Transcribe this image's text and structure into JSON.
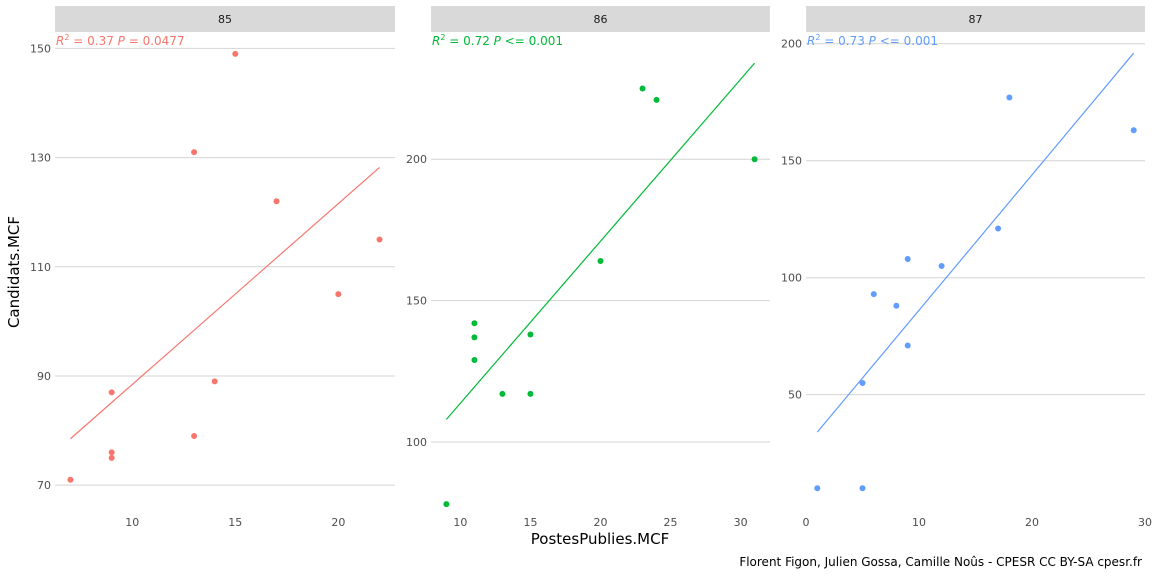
{
  "caption": "Florent Figon, Julien Gossa, Camille Noûs - CPESR CC BY-SA cpesr.fr",
  "chart_data": {
    "type": "scatter",
    "xlabel": "PostesPublies.MCF",
    "ylabel": "Candidats.MCF",
    "grid": "horizontal major gridlines",
    "panels": [
      {
        "strip": "85",
        "color": "#F8766D",
        "stat_r2": "= 0.37",
        "stat_p": "= 0.0477",
        "xlim": [
          6.25,
          22.75
        ],
        "ylim": [
          66,
          153
        ],
        "xticks": [
          10,
          15,
          20
        ],
        "yticks": [
          70,
          90,
          110,
          130,
          150
        ],
        "points": [
          [
            7,
            71
          ],
          [
            9,
            75
          ],
          [
            9,
            76
          ],
          [
            9,
            87
          ],
          [
            13,
            79
          ],
          [
            13,
            131
          ],
          [
            14,
            89
          ],
          [
            15,
            149
          ],
          [
            17,
            122
          ],
          [
            20,
            105
          ],
          [
            22,
            115
          ]
        ],
        "fit": [
          [
            7,
            78.5
          ],
          [
            22,
            128.2
          ]
        ]
      },
      {
        "strip": "86",
        "color": "#00BA38",
        "stat_r2": "= 0.72",
        "stat_p": "<= 0.001",
        "xlim": [
          7.9,
          32.1
        ],
        "ylim": [
          77,
          245
        ],
        "xticks": [
          10,
          15,
          20,
          25,
          30
        ],
        "yticks": [
          100,
          150,
          200
        ],
        "points": [
          [
            9,
            78
          ],
          [
            11,
            129
          ],
          [
            11,
            137
          ],
          [
            11,
            142
          ],
          [
            13,
            117
          ],
          [
            15,
            117
          ],
          [
            15,
            138
          ],
          [
            20,
            164
          ],
          [
            23,
            225
          ],
          [
            24,
            221
          ],
          [
            31,
            200
          ]
        ],
        "fit": [
          [
            9,
            108
          ],
          [
            31,
            234
          ]
        ]
      },
      {
        "strip": "87",
        "color": "#619CFF",
        "stat_r2": "= 0.73",
        "stat_p": "<= 0.001",
        "xlim": [
          0,
          30
        ],
        "ylim": [
          2,
          205
        ],
        "xticks": [
          0,
          10,
          20,
          30
        ],
        "yticks": [
          50,
          100,
          150,
          200
        ],
        "points": [
          [
            1,
            10
          ],
          [
            5,
            10
          ],
          [
            5,
            55
          ],
          [
            6,
            93
          ],
          [
            8,
            88
          ],
          [
            9,
            71
          ],
          [
            9,
            108
          ],
          [
            12,
            105
          ],
          [
            17,
            121
          ],
          [
            18,
            177
          ],
          [
            29,
            163
          ]
        ],
        "fit": [
          [
            1,
            34
          ],
          [
            29,
            196
          ]
        ]
      }
    ]
  }
}
